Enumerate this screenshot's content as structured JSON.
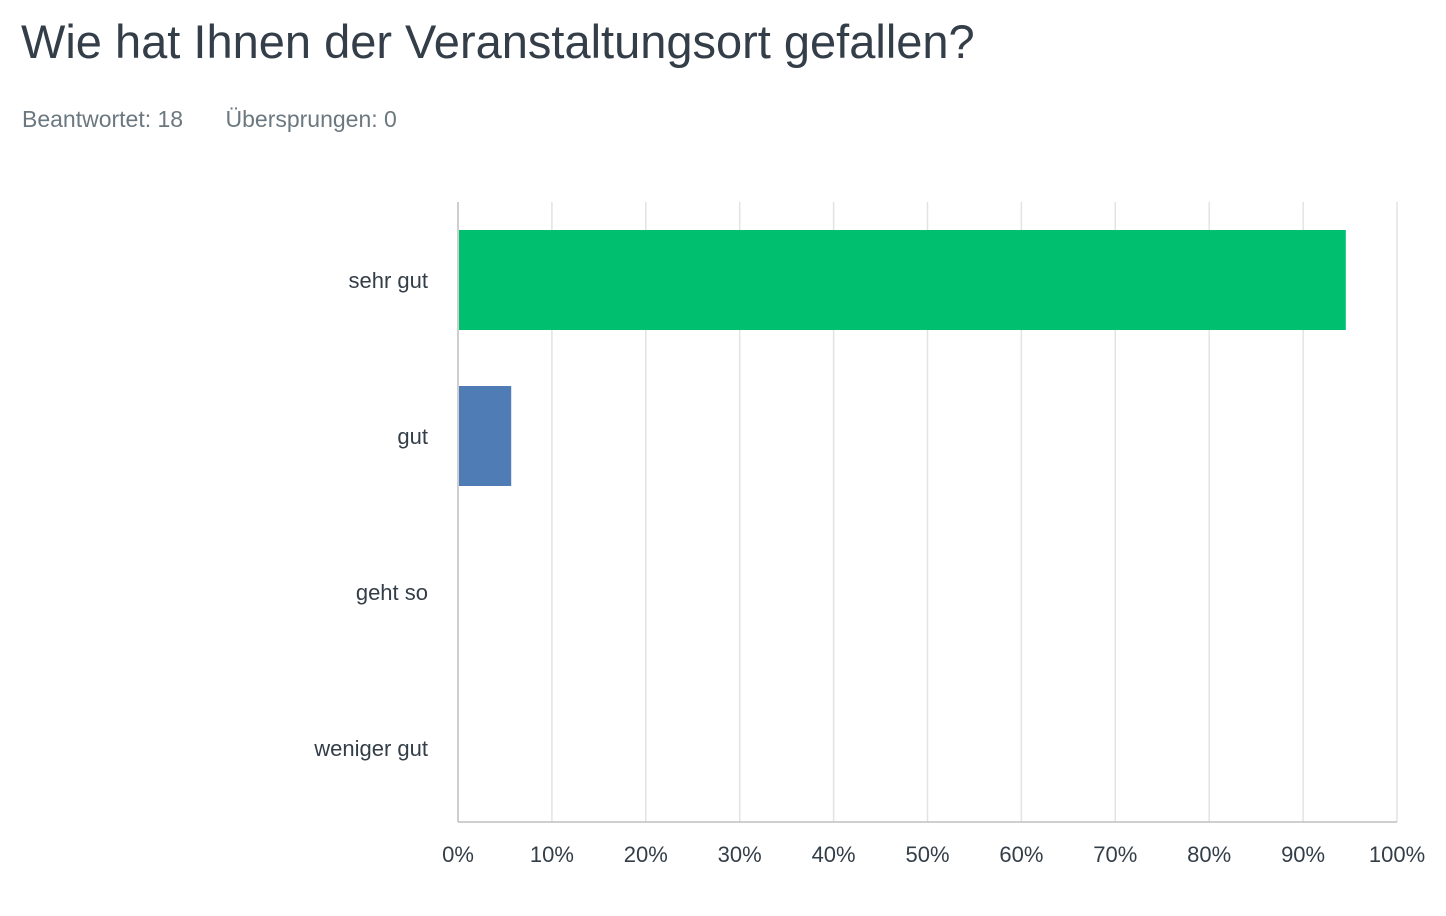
{
  "question": {
    "title": "Wie hat Ihnen der Veranstaltungsort gefallen?"
  },
  "stats": {
    "answered_label": "Beantwortet: 18",
    "skipped_label": "Übersprungen: 0"
  },
  "chart_data": {
    "type": "bar",
    "orientation": "horizontal",
    "categories": [
      "sehr gut",
      "gut",
      "geht so",
      "weniger gut"
    ],
    "values": [
      94.44,
      5.56,
      0,
      0
    ],
    "colors": [
      "#00bf6f",
      "#507cb6",
      "#507cb6",
      "#507cb6"
    ],
    "xlim": [
      0,
      100
    ],
    "x_ticks": [
      0,
      10,
      20,
      30,
      40,
      50,
      60,
      70,
      80,
      90,
      100
    ],
    "x_tick_labels": [
      "0%",
      "10%",
      "20%",
      "30%",
      "40%",
      "50%",
      "60%",
      "70%",
      "80%",
      "90%",
      "100%"
    ],
    "grid": "vertical",
    "title": "",
    "xlabel": "",
    "ylabel": ""
  }
}
